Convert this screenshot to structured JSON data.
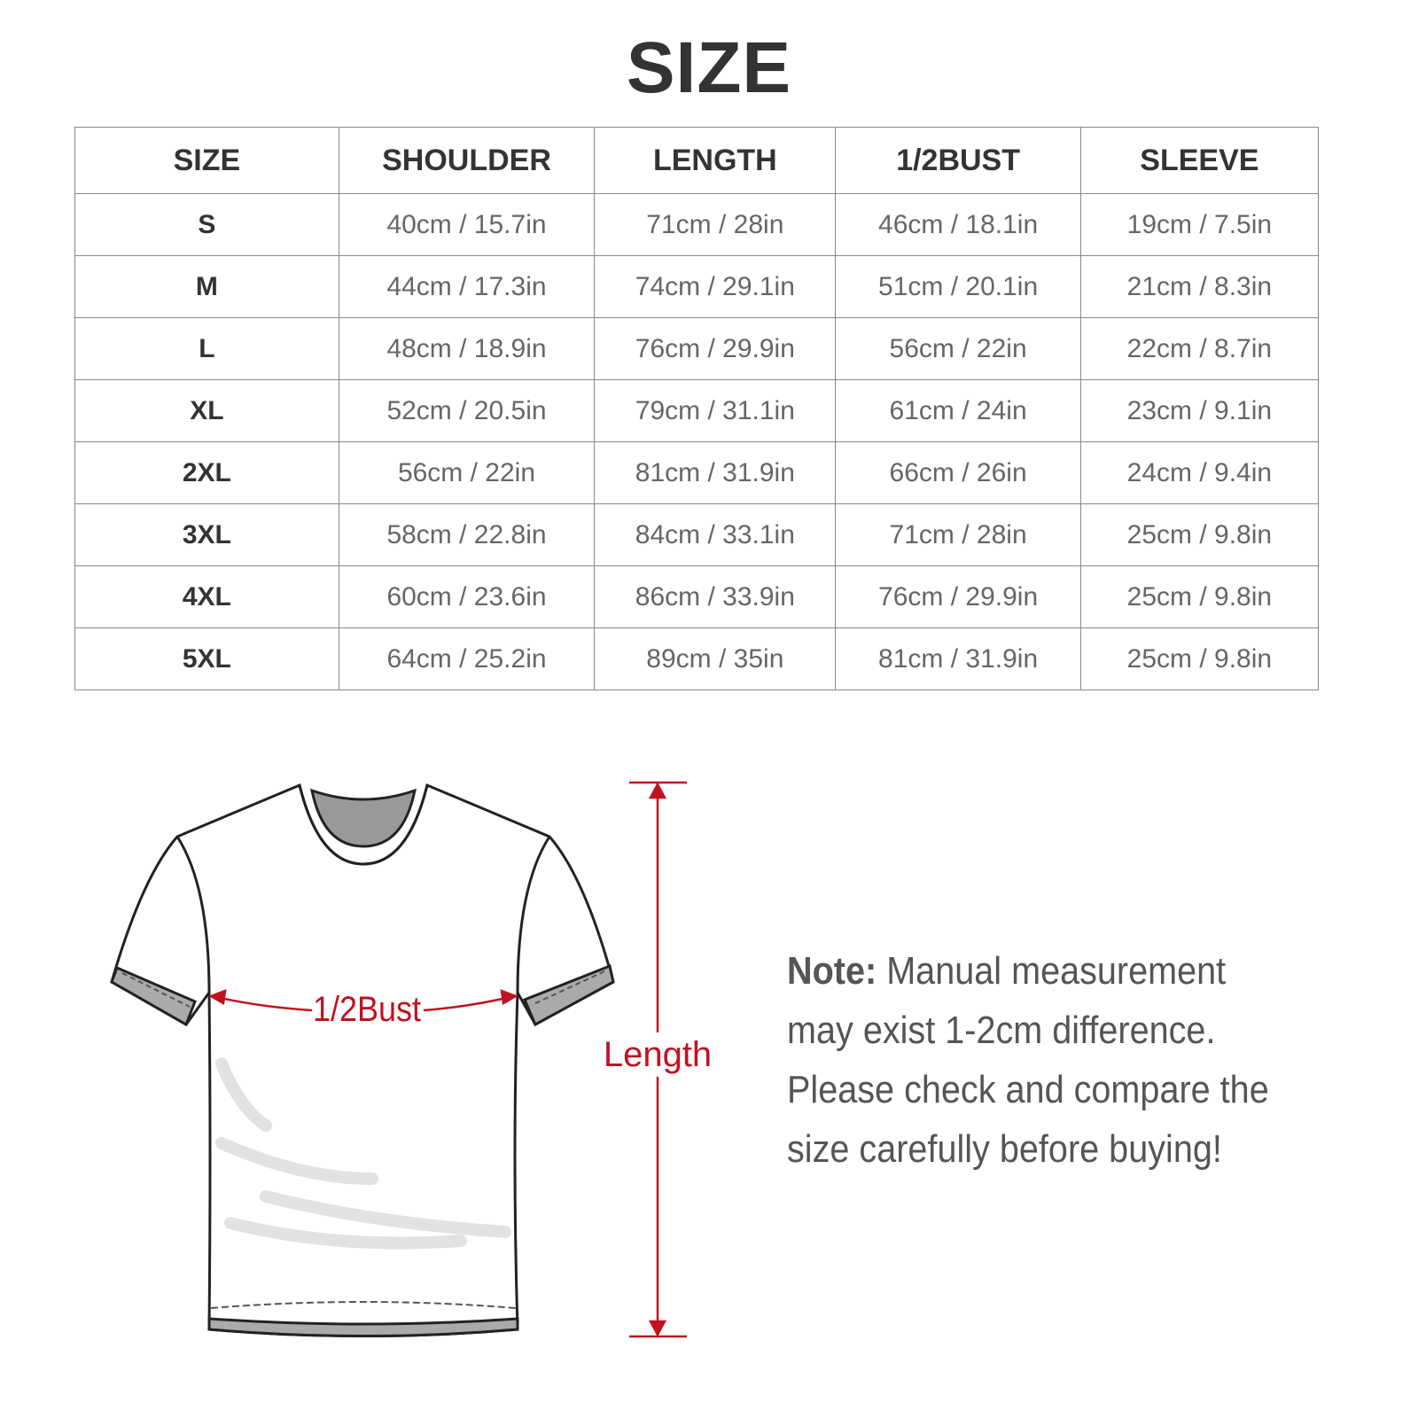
{
  "title": "SIZE",
  "table": {
    "headers": [
      "SIZE",
      "SHOULDER",
      "LENGTH",
      "1/2BUST",
      "SLEEVE"
    ],
    "rows": [
      [
        "S",
        "40cm / 15.7in",
        "71cm / 28in",
        "46cm / 18.1in",
        "19cm / 7.5in"
      ],
      [
        "M",
        "44cm / 17.3in",
        "74cm / 29.1in",
        "51cm / 20.1in",
        "21cm / 8.3in"
      ],
      [
        "L",
        "48cm / 18.9in",
        "76cm / 29.9in",
        "56cm / 22in",
        "22cm / 8.7in"
      ],
      [
        "XL",
        "52cm / 20.5in",
        "79cm / 31.1in",
        "61cm / 24in",
        "23cm / 9.1in"
      ],
      [
        "2XL",
        "56cm / 22in",
        "81cm / 31.9in",
        "66cm / 26in",
        "24cm / 9.4in"
      ],
      [
        "3XL",
        "58cm / 22.8in",
        "84cm / 33.1in",
        "71cm / 28in",
        "25cm / 9.8in"
      ],
      [
        "4XL",
        "60cm / 23.6in",
        "86cm / 33.9in",
        "76cm / 29.9in",
        "25cm / 9.8in"
      ],
      [
        "5XL",
        "64cm / 25.2in",
        "89cm / 35in",
        "81cm / 31.9in",
        "25cm / 9.8in"
      ]
    ]
  },
  "diagram": {
    "bust_label": "1/2Bust",
    "length_label": "Length",
    "accent_color": "#c0121f"
  },
  "note": {
    "label": "Note:",
    "text": " Manual measurement may exist 1-2cm difference. Please check and compare the size carefully before buying!"
  }
}
